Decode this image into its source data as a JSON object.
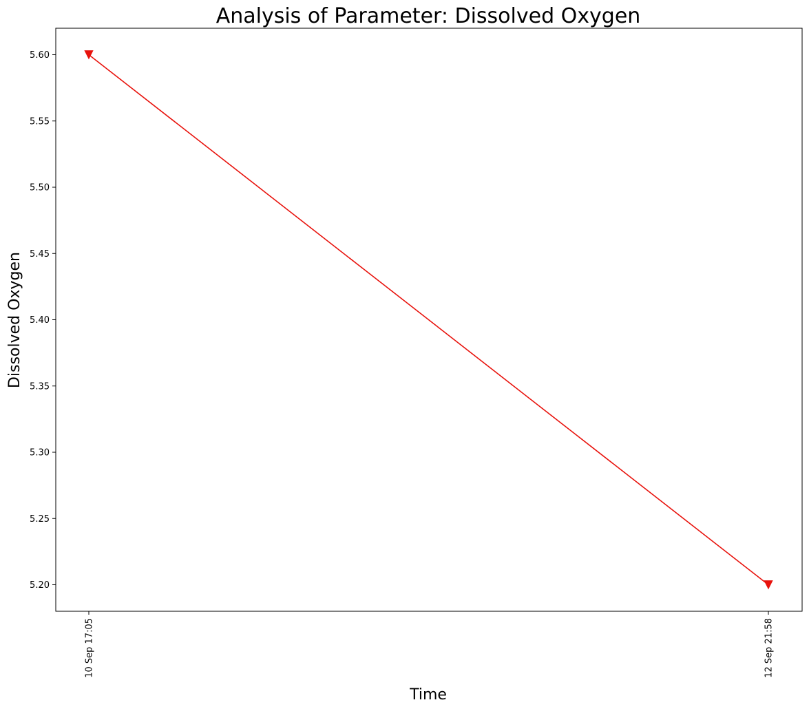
{
  "chart_data": {
    "type": "line",
    "title": "Analysis of Parameter: Dissolved Oxygen",
    "xlabel": "Time",
    "ylabel": "Dissolved Oxygen",
    "x": [
      "10 Sep 17:05",
      "12 Sep 21:58"
    ],
    "series": [
      {
        "values": [
          5.6,
          5.2
        ],
        "color": "#e8120c",
        "marker": "triangle-down"
      }
    ],
    "yticks": [
      "5.20",
      "5.25",
      "5.30",
      "5.35",
      "5.40",
      "5.45",
      "5.50",
      "5.55",
      "5.60"
    ],
    "ylim": [
      5.18,
      5.62
    ],
    "grid": false,
    "legend": "none"
  }
}
